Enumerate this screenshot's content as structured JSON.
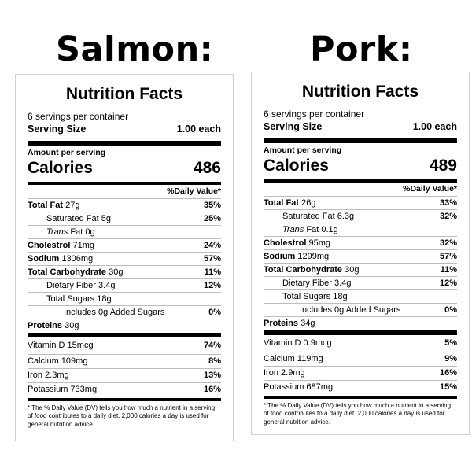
{
  "salmon": {
    "heading": "Salmon:",
    "title": "Nutrition Facts",
    "servings": "6 servings per container",
    "serving_size_label": "Serving Size",
    "serving_size_value": "1.00 each",
    "amount_per_serving": "Amount per serving",
    "calories_label": "Calories",
    "calories_value": "486",
    "dv_header": "%Daily Value*",
    "total_fat": {
      "label": "Total Fat",
      "amount": "27g",
      "dv": "35%"
    },
    "saturated_fat": {
      "label": "Saturated Fat",
      "amount": "5g",
      "dv": "25%"
    },
    "trans_fat": {
      "label": "Trans",
      "suffix": "Fat",
      "amount": "0g"
    },
    "cholestrol": {
      "label": "Cholestrol",
      "amount": "71mg",
      "dv": "24%"
    },
    "sodium": {
      "label": "Sodium",
      "amount": "1306mg",
      "dv": "57%"
    },
    "total_carb": {
      "label": "Total Carbohydrate",
      "amount": "30g",
      "dv": "11%"
    },
    "fiber": {
      "label": "Dietary Fiber",
      "amount": "3.4g",
      "dv": "12%"
    },
    "sugars": {
      "label": "Total Sugars",
      "amount": "18g"
    },
    "added_sugars": {
      "label": "Includes 0g Added Sugars",
      "dv": "0%"
    },
    "proteins": {
      "label": "Proteins",
      "amount": "30g"
    },
    "vitamin_d": {
      "label": "Vitamin D",
      "amount": "15mcg",
      "dv": "74%"
    },
    "calcium": {
      "label": "Calcium",
      "amount": "109mg",
      "dv": "8%"
    },
    "iron": {
      "label": "Iron",
      "amount": "2.3mg",
      "dv": "13%"
    },
    "potassium": {
      "label": "Potassium",
      "amount": "733mg",
      "dv": "16%"
    },
    "footnote": "* The % Daily Value (DV) tells you how much a nutrient in a serving of food contributes to a daily diet. 2,000 calories a day is used for general nutrition advice."
  },
  "pork": {
    "heading": "Pork:",
    "title": "Nutrition Facts",
    "servings": "6 servings per container",
    "serving_size_label": "Serving Size",
    "serving_size_value": "1.00 each",
    "amount_per_serving": "Amount per serving",
    "calories_label": "Calories",
    "calories_value": "489",
    "dv_header": "%Daily Value*",
    "total_fat": {
      "label": "Total Fat",
      "amount": "26g",
      "dv": "33%"
    },
    "saturated_fat": {
      "label": "Saturated Fat",
      "amount": "6.3g",
      "dv": "32%"
    },
    "trans_fat": {
      "label": "Trans",
      "suffix": "Fat",
      "amount": "0.1g"
    },
    "cholestrol": {
      "label": "Cholestrol",
      "amount": "95mg",
      "dv": "32%"
    },
    "sodium": {
      "label": "Sodium",
      "amount": "1299mg",
      "dv": "57%"
    },
    "total_carb": {
      "label": "Total Carbohydrate",
      "amount": "30g",
      "dv": "11%"
    },
    "fiber": {
      "label": "Dietary Fiber",
      "amount": "3.4g",
      "dv": "12%"
    },
    "sugars": {
      "label": "Total Sugars",
      "amount": "18g"
    },
    "added_sugars": {
      "label": "Includes 0g Added Sugars",
      "dv": "0%"
    },
    "proteins": {
      "label": "Proteins",
      "amount": "34g"
    },
    "vitamin_d": {
      "label": "Vitamin D",
      "amount": "0.9mcg",
      "dv": "5%"
    },
    "calcium": {
      "label": "Calcium",
      "amount": "119mg",
      "dv": "9%"
    },
    "iron": {
      "label": "Iron",
      "amount": "2.9mg",
      "dv": "16%"
    },
    "potassium": {
      "label": "Potassium",
      "amount": "687mg",
      "dv": "15%"
    },
    "footnote": "* The % Daily Value (DV) tells you how much a nutrient in a serving of food contributes to a daily diet. 2,000 calories a day is used for general nutrition advice."
  }
}
